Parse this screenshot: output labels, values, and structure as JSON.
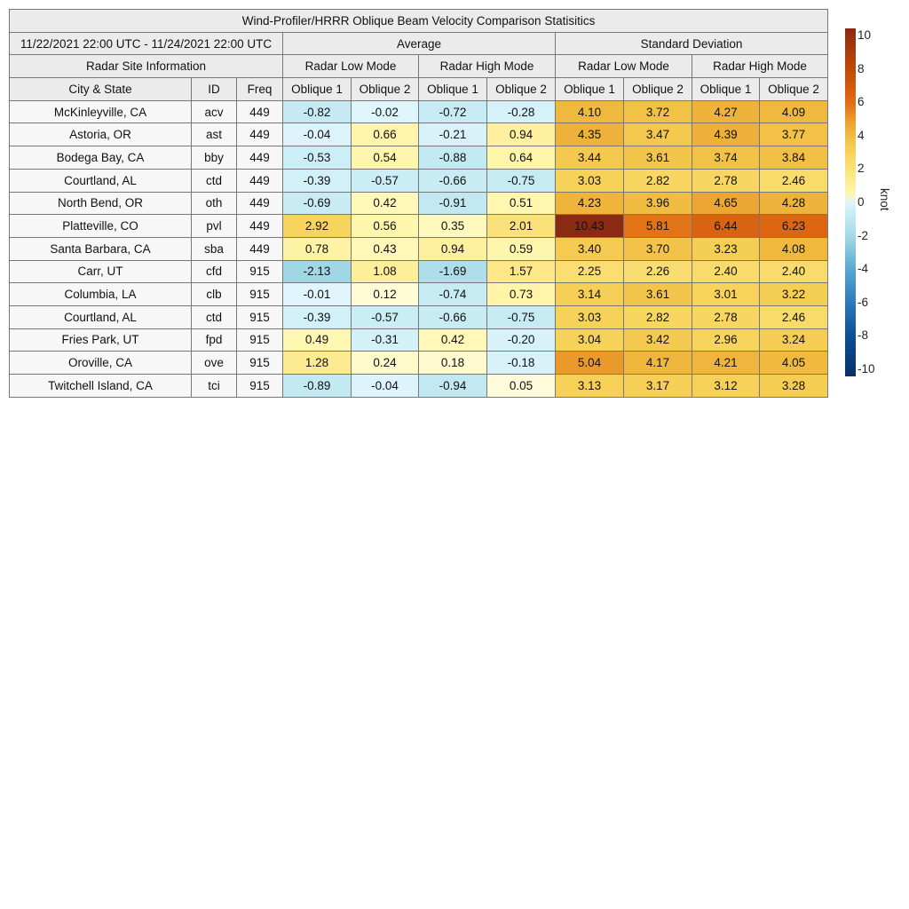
{
  "chart_data": {
    "type": "heatmap",
    "title": "Wind-Profiler/HRRR Oblique Beam Velocity Comparison Statisitics",
    "date_range": "11/22/2021 22:00 UTC - 11/24/2021 22:00 UTC",
    "site_header": "Radar Site Information",
    "stat_groups": [
      "Average",
      "Standard Deviation"
    ],
    "mode_groups": [
      "Radar Low Mode",
      "Radar High Mode",
      "Radar Low Mode",
      "Radar High Mode"
    ],
    "columns": [
      "City & State",
      "ID",
      "Freq",
      "Oblique 1",
      "Oblique 2",
      "Oblique 1",
      "Oblique 2",
      "Oblique 1",
      "Oblique 2",
      "Oblique 1",
      "Oblique 2"
    ],
    "rows": [
      {
        "city": "McKinleyville, CA",
        "id": "acv",
        "freq": "449",
        "values": [
          -0.82,
          -0.02,
          -0.72,
          -0.28,
          4.1,
          3.72,
          4.27,
          4.09
        ]
      },
      {
        "city": "Astoria, OR",
        "id": "ast",
        "freq": "449",
        "values": [
          -0.04,
          0.66,
          -0.21,
          0.94,
          4.35,
          3.47,
          4.39,
          3.77
        ]
      },
      {
        "city": "Bodega Bay, CA",
        "id": "bby",
        "freq": "449",
        "values": [
          -0.53,
          0.54,
          -0.88,
          0.64,
          3.44,
          3.61,
          3.74,
          3.84
        ]
      },
      {
        "city": "Courtland, AL",
        "id": "ctd",
        "freq": "449",
        "values": [
          -0.39,
          -0.57,
          -0.66,
          -0.75,
          3.03,
          2.82,
          2.78,
          2.46
        ]
      },
      {
        "city": "North Bend, OR",
        "id": "oth",
        "freq": "449",
        "values": [
          -0.69,
          0.42,
          -0.91,
          0.51,
          4.23,
          3.96,
          4.65,
          4.28
        ]
      },
      {
        "city": "Platteville, CO",
        "id": "pvl",
        "freq": "449",
        "values": [
          2.92,
          0.56,
          0.35,
          2.01,
          10.43,
          5.81,
          6.44,
          6.23
        ]
      },
      {
        "city": "Santa Barbara, CA",
        "id": "sba",
        "freq": "449",
        "values": [
          0.78,
          0.43,
          0.94,
          0.59,
          3.4,
          3.7,
          3.23,
          4.08
        ]
      },
      {
        "city": "Carr, UT",
        "id": "cfd",
        "freq": "915",
        "values": [
          -2.13,
          1.08,
          -1.69,
          1.57,
          2.25,
          2.26,
          2.4,
          2.4
        ]
      },
      {
        "city": "Columbia, LA",
        "id": "clb",
        "freq": "915",
        "values": [
          -0.01,
          0.12,
          -0.74,
          0.73,
          3.14,
          3.61,
          3.01,
          3.22
        ]
      },
      {
        "city": "Courtland, AL",
        "id": "ctd",
        "freq": "915",
        "values": [
          -0.39,
          -0.57,
          -0.66,
          -0.75,
          3.03,
          2.82,
          2.78,
          2.46
        ]
      },
      {
        "city": "Fries Park, UT",
        "id": "fpd",
        "freq": "915",
        "values": [
          0.49,
          -0.31,
          0.42,
          -0.2,
          3.04,
          3.42,
          2.96,
          3.24
        ]
      },
      {
        "city": "Oroville, CA",
        "id": "ove",
        "freq": "915",
        "values": [
          1.28,
          0.24,
          0.18,
          -0.18,
          5.04,
          4.17,
          4.21,
          4.05
        ]
      },
      {
        "city": "Twitchell Island, CA",
        "id": "tci",
        "freq": "915",
        "values": [
          -0.89,
          -0.04,
          -0.94,
          0.05,
          3.13,
          3.17,
          3.12,
          3.28
        ]
      }
    ],
    "colorbar": {
      "label": "knot",
      "range": [
        -10.43,
        10.43
      ],
      "ticks": [
        10,
        8,
        6,
        4,
        2,
        0,
        -2,
        -4,
        -6,
        -8,
        -10
      ],
      "colormap": "blue-white-yellow-orange-brown diverging"
    }
  }
}
